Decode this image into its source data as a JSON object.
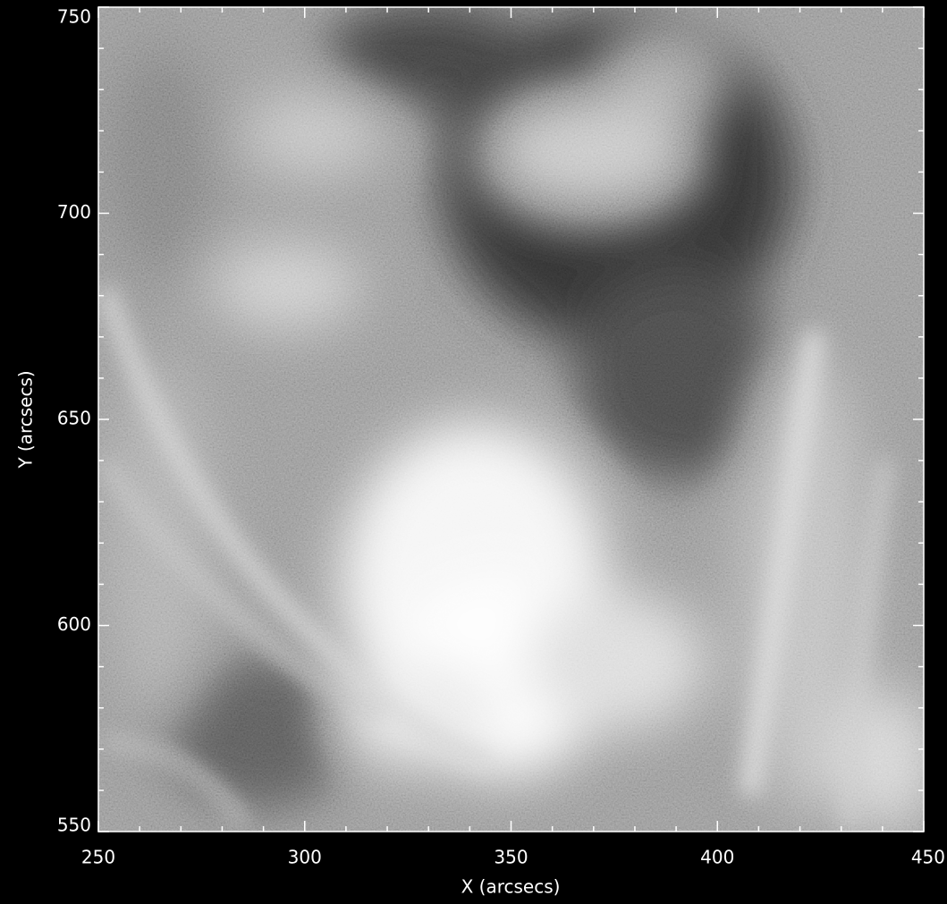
{
  "chart_data": {
    "type": "image",
    "xlabel": "X (arcsecs)",
    "ylabel": "Y (arcsecs)",
    "xlim": [
      250,
      450
    ],
    "ylim": [
      550,
      750
    ],
    "xticks": [
      250,
      300,
      350,
      400,
      450
    ],
    "yticks": [
      550,
      600,
      650,
      700,
      750
    ],
    "xminorticks": [
      260,
      270,
      280,
      290,
      310,
      320,
      330,
      340,
      360,
      370,
      380,
      390,
      410,
      420,
      430,
      440
    ],
    "yminorticks": [
      560,
      570,
      580,
      590,
      610,
      620,
      630,
      640,
      660,
      670,
      680,
      690,
      710,
      720,
      730,
      740
    ],
    "colormap": "gray"
  }
}
